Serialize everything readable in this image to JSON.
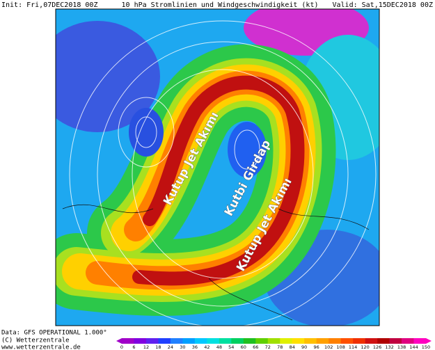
{
  "header": {
    "init": "Init: Fri,07DEC2018 00Z",
    "title": "10 hPa Stromlinien und Windgeschwindigkeit (kt)",
    "valid": "Valid: Sat,15DEC2018 00Z"
  },
  "annotations": [
    "Kutup Jet Akımı",
    "Kutbi Girdap",
    "Kutup Jet Akımı"
  ],
  "footer": [
    "Data: GFS OPERATIONAL 1.000°",
    "(C) Wetterzentrale",
    "www.wetterzentrale.de"
  ],
  "colorbar": {
    "ticks": [
      0,
      6,
      12,
      18,
      24,
      30,
      36,
      42,
      48,
      54,
      60,
      66,
      72,
      78,
      84,
      90,
      96,
      102,
      108,
      114,
      120,
      126,
      132,
      138,
      144,
      150
    ],
    "colors": [
      "#a000c8",
      "#8000e0",
      "#6020f0",
      "#2040ff",
      "#2080ff",
      "#00a0ff",
      "#00c8ff",
      "#00e0e0",
      "#00e0a0",
      "#00d060",
      "#20c020",
      "#60d000",
      "#a0e000",
      "#e0f000",
      "#ffe000",
      "#ffc000",
      "#ffa000",
      "#ff8000",
      "#ff5000",
      "#f03000",
      "#d01010",
      "#b00000",
      "#c00040",
      "#e00080",
      "#ff00c0"
    ]
  }
}
